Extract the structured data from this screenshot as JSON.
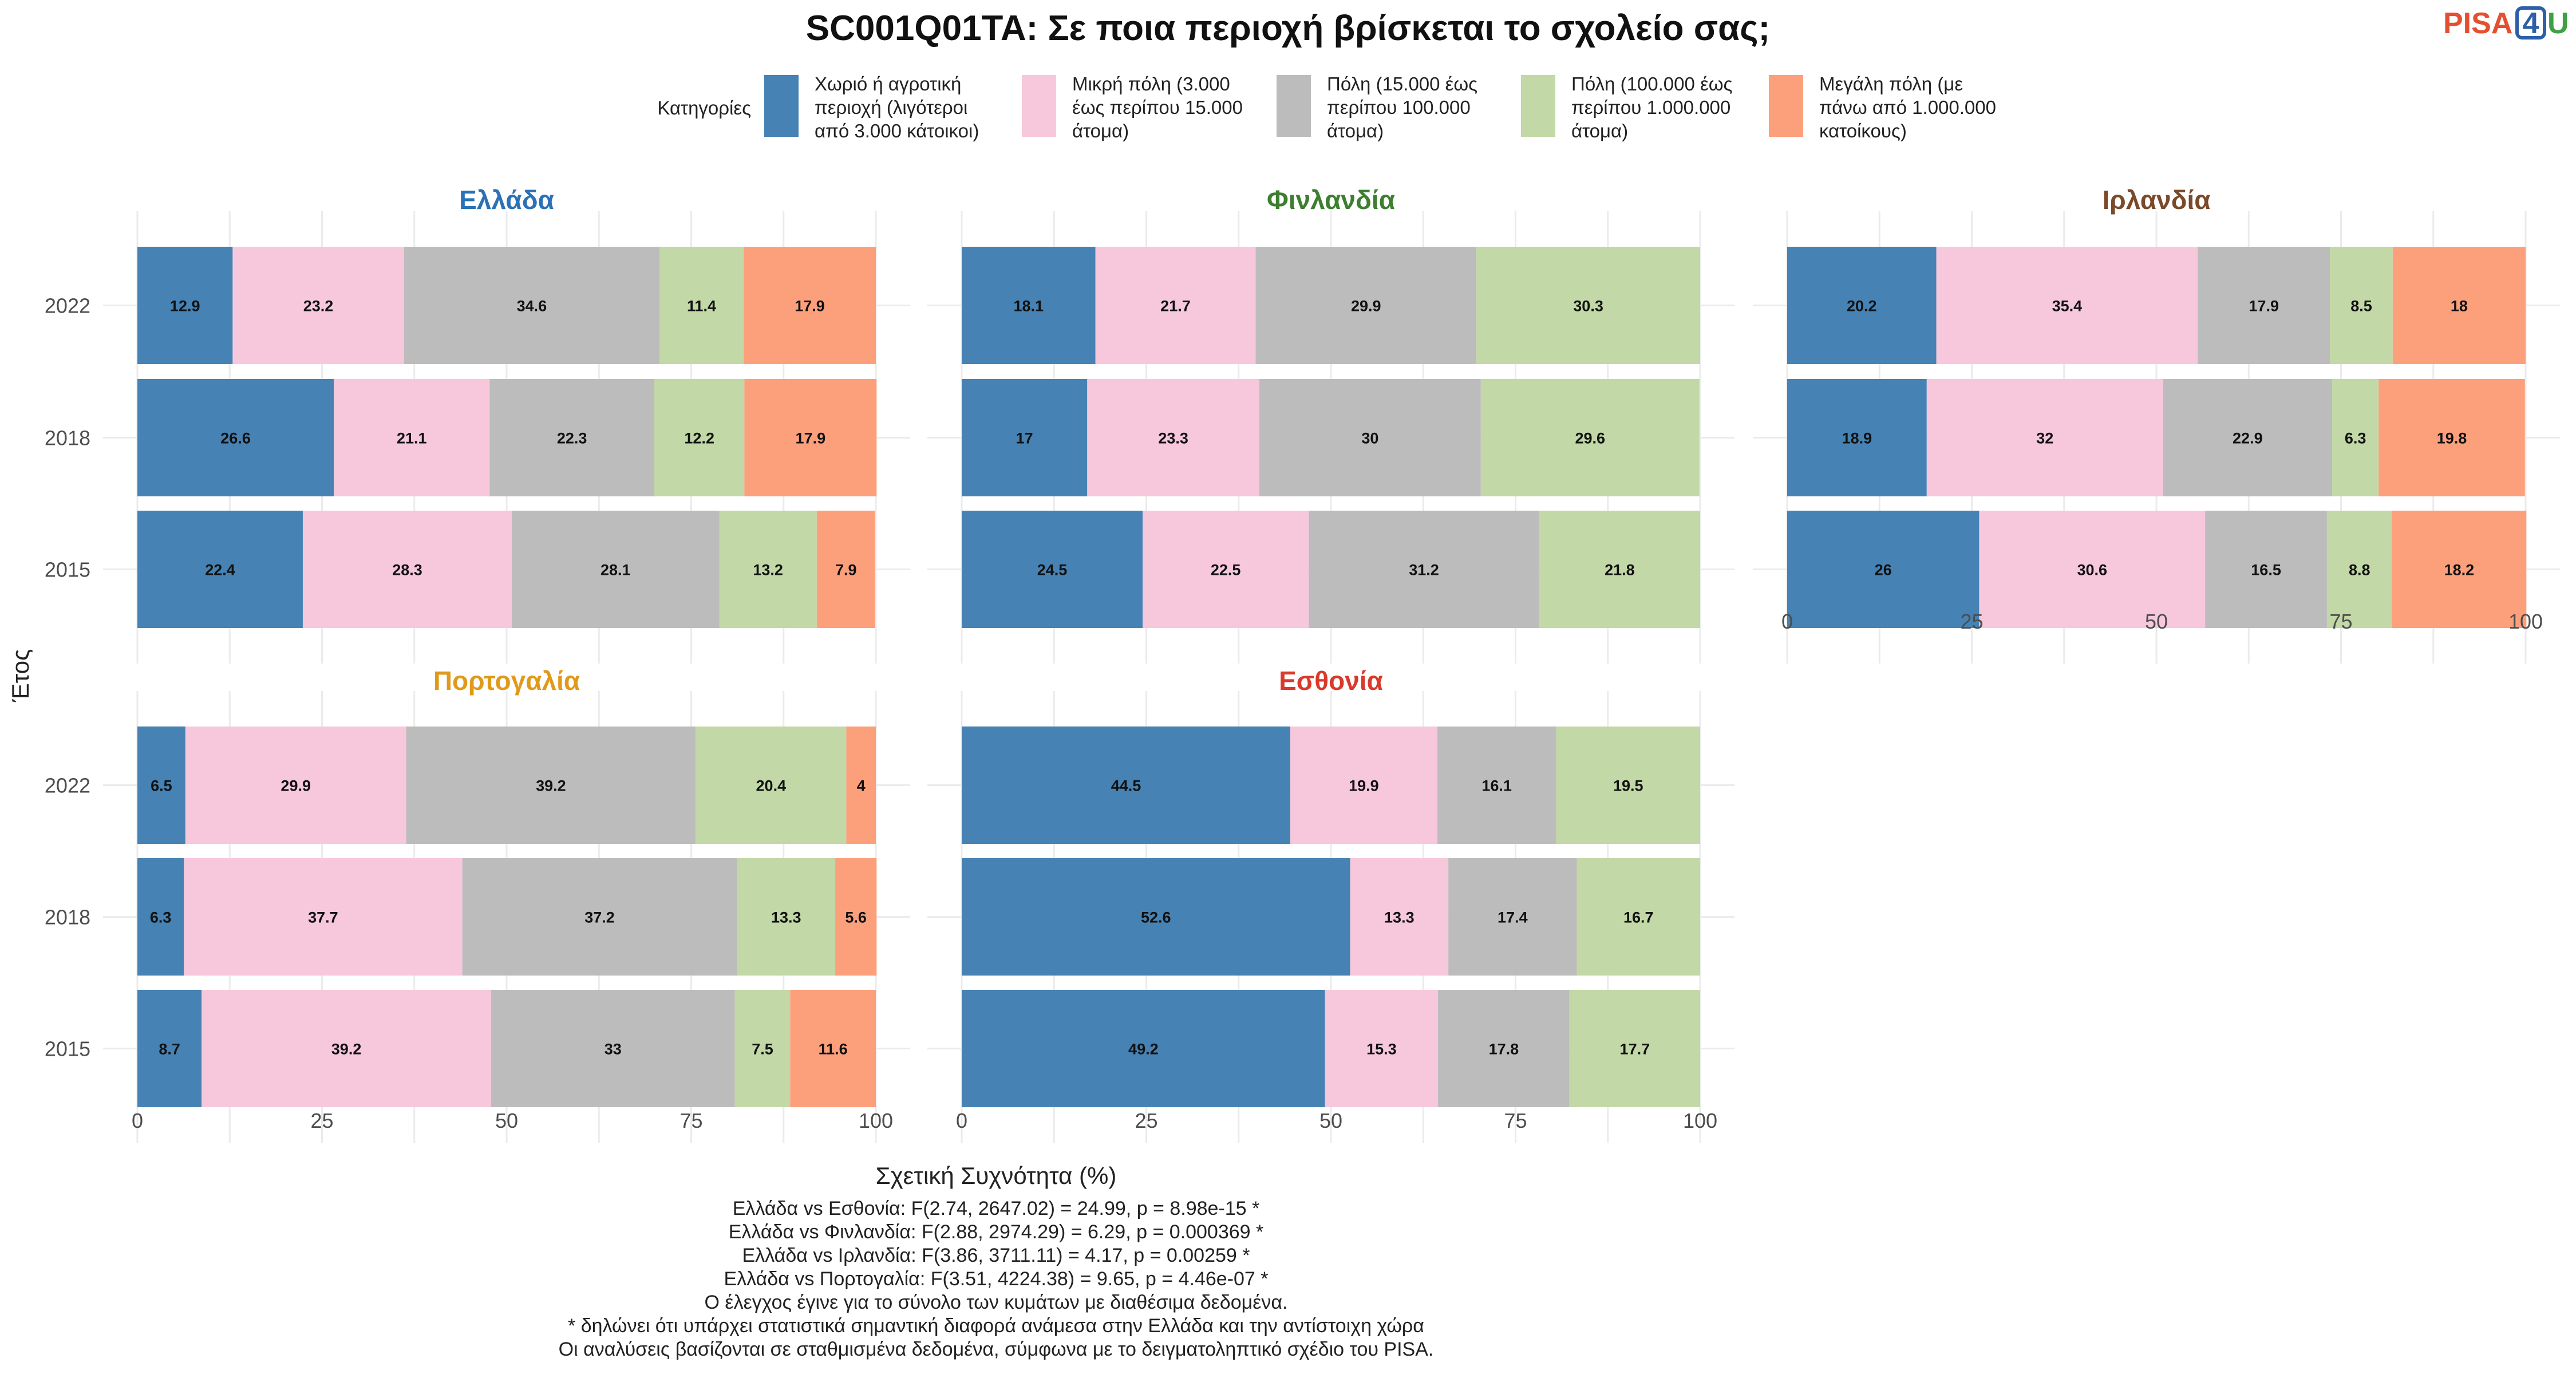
{
  "logo": {
    "part1": "PISA",
    "part2": "4",
    "part3": "U"
  },
  "footnotes": [
    "Ελλάδα vs Εσθονία: F(2.74, 2647.02) = 24.99, p = 8.98e-15 *",
    "Ελλάδα vs Φινλανδία: F(2.88, 2974.29) = 6.29, p = 0.000369 *",
    "Ελλάδα vs Ιρλανδία: F(3.86, 3711.11) = 4.17, p = 0.00259 *",
    "Ελλάδα vs Πορτογαλία: F(3.51, 4224.38) = 9.65, p = 4.46e-07 *",
    "Ο έλεγχος έγινε για το σύνολο των κυμάτων με διαθέσιμα δεδομένα.",
    "* δηλώνει ότι υπάρχει στατιστικά σημαντική διαφορά ανάμεσα στην Ελλάδα και την αντίστοιχη χώρα",
    "Οι αναλύσεις βασίζονται σε σταθμισμένα δεδομένα, σύμφωνα με το δειγματοληπτικό σχέδιο του PISA."
  ],
  "chart_data": {
    "type": "bar",
    "orientation": "horizontal",
    "stacked": true,
    "title": "SC001Q01TA: Σε ποια περιοχή βρίσκεται το σχολείο σας;",
    "xlabel": "Σχετική Συχνότητα (%)",
    "ylabel": "Έτος",
    "xlim": [
      0,
      100
    ],
    "xticks": [
      "0",
      "25",
      "50",
      "75",
      "100"
    ],
    "legend_title": "Κατηγορίες",
    "legend_position": "top",
    "grid": true,
    "categories": [
      "2022",
      "2018",
      "2015"
    ],
    "series_meta": [
      {
        "name": "Χωριό ή αγροτική περιοχή (λιγότεροι από 3.000 κάτοικοι)",
        "lines": [
          "Χωριό ή αγροτική",
          "περιοχή (λιγότεροι",
          "από 3.000 κάτοικοι)"
        ],
        "color": "#4682b4"
      },
      {
        "name": "Μικρή πόλη (3.000 έως περίπου 15.000 άτομα)",
        "lines": [
          "Μικρή πόλη (3.000",
          "έως περίπου 15.000",
          "άτομα)"
        ],
        "color": "#f7c8dc"
      },
      {
        "name": "Πόλη (15.000 έως περίπου 100.000 άτομα)",
        "lines": [
          "Πόλη (15.000 έως",
          "περίπου 100.000",
          "άτομα)"
        ],
        "color": "#bcbcbc"
      },
      {
        "name": "Πόλη (100.000 έως περίπου 1.000.000 άτομα)",
        "lines": [
          "Πόλη (100.000 έως",
          "περίπου 1.000.000",
          "άτομα)"
        ],
        "color": "#c2d8a6"
      },
      {
        "name": "Μεγάλη πόλη (με πάνω από 1.000.000 κατοίκους)",
        "lines": [
          "Μεγάλη πόλη (με",
          "πάνω από 1.000.000",
          "κατοίκους)"
        ],
        "color": "#fca07c"
      }
    ],
    "panels": [
      {
        "name": "Ελλάδα",
        "title_color": "#2a72b5",
        "rows": [
          {
            "year": "2022",
            "values": [
              12.9,
              23.2,
              34.6,
              11.4,
              17.9
            ],
            "labels": [
              "12.9",
              "23.2",
              "34.6",
              "11.4",
              "17.9"
            ]
          },
          {
            "year": "2018",
            "values": [
              26.6,
              21.1,
              22.3,
              12.2,
              17.9
            ],
            "labels": [
              "26.6",
              "21.1",
              "22.3",
              "12.2",
              "17.9"
            ]
          },
          {
            "year": "2015",
            "values": [
              22.4,
              28.3,
              28.1,
              13.2,
              7.9
            ],
            "labels": [
              "22.4",
              "28.3",
              "28.1",
              "13.2",
              "7.9"
            ]
          }
        ]
      },
      {
        "name": "Φινλανδία",
        "title_color": "#3c7f2f",
        "rows": [
          {
            "year": "2022",
            "values": [
              18.1,
              21.7,
              29.9,
              30.3,
              0
            ],
            "labels": [
              "18.1",
              "21.7",
              "29.9",
              "30.3",
              ""
            ]
          },
          {
            "year": "2018",
            "values": [
              17,
              23.3,
              30,
              29.6,
              0
            ],
            "labels": [
              "17",
              "23.3",
              "30",
              "29.6",
              ""
            ]
          },
          {
            "year": "2015",
            "values": [
              24.5,
              22.5,
              31.2,
              21.8,
              0
            ],
            "labels": [
              "24.5",
              "22.5",
              "31.2",
              "21.8",
              ""
            ]
          }
        ]
      },
      {
        "name": "Ιρλανδία",
        "title_color": "#7a4a2a",
        "rows": [
          {
            "year": "2022",
            "values": [
              20.2,
              35.4,
              17.9,
              8.5,
              18
            ],
            "labels": [
              "20.2",
              "35.4",
              "17.9",
              "8.5",
              "18"
            ]
          },
          {
            "year": "2018",
            "values": [
              18.9,
              32,
              22.9,
              6.3,
              19.8
            ],
            "labels": [
              "18.9",
              "32",
              "22.9",
              "6.3",
              "19.8"
            ]
          },
          {
            "year": "2015",
            "values": [
              26,
              30.6,
              16.5,
              8.8,
              18.2
            ],
            "labels": [
              "26",
              "30.6",
              "16.5",
              "8.8",
              "18.2"
            ]
          }
        ]
      },
      {
        "name": "Πορτογαλία",
        "title_color": "#e09a1b",
        "rows": [
          {
            "year": "2022",
            "values": [
              6.5,
              29.9,
              39.2,
              20.4,
              4
            ],
            "labels": [
              "6.5",
              "29.9",
              "39.2",
              "20.4",
              "4"
            ]
          },
          {
            "year": "2018",
            "values": [
              6.3,
              37.7,
              37.2,
              13.3,
              5.6
            ],
            "labels": [
              "6.3",
              "37.7",
              "37.2",
              "13.3",
              "5.6"
            ]
          },
          {
            "year": "2015",
            "values": [
              8.7,
              39.2,
              33,
              7.5,
              11.6
            ],
            "labels": [
              "8.7",
              "39.2",
              "33",
              "7.5",
              "11.6"
            ]
          }
        ]
      },
      {
        "name": "Εσθονία",
        "title_color": "#d93a2b",
        "rows": [
          {
            "year": "2022",
            "values": [
              44.5,
              19.9,
              16.1,
              19.5,
              0
            ],
            "labels": [
              "44.5",
              "19.9",
              "16.1",
              "19.5",
              ""
            ]
          },
          {
            "year": "2018",
            "values": [
              52.6,
              13.3,
              17.4,
              16.7,
              0
            ],
            "labels": [
              "52.6",
              "13.3",
              "17.4",
              "16.7",
              ""
            ]
          },
          {
            "year": "2015",
            "values": [
              49.2,
              15.3,
              17.8,
              17.7,
              0
            ],
            "labels": [
              "49.2",
              "15.3",
              "17.8",
              "17.7",
              ""
            ]
          }
        ]
      }
    ]
  }
}
